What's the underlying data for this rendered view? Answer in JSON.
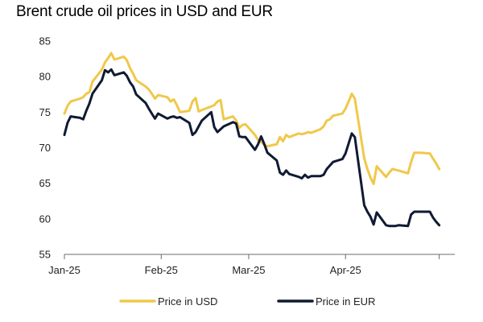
{
  "chart_data": {
    "type": "line",
    "title": "Brent crude oil prices in USD and EUR",
    "xlabel": "",
    "ylabel": "",
    "x_ticks": [
      "Jan-25",
      "Feb-25",
      "Mar-25",
      "Apr-25"
    ],
    "y_ticks": [
      "85",
      "80",
      "75",
      "70",
      "65",
      "60",
      "55"
    ],
    "ylim": [
      55,
      85
    ],
    "grid": false,
    "legend_position": "bottom",
    "series": [
      {
        "name": "Price in USD",
        "color": "#F0C84A",
        "points": [
          [
            "2025-01-01",
            74.8
          ],
          [
            "2025-01-02",
            75.9
          ],
          [
            "2025-01-03",
            76.5
          ],
          [
            "2025-01-06",
            76.9
          ],
          [
            "2025-01-07",
            77.1
          ],
          [
            "2025-01-08",
            77.6
          ],
          [
            "2025-01-09",
            77.8
          ],
          [
            "2025-01-10",
            79.3
          ],
          [
            "2025-01-13",
            81.0
          ],
          [
            "2025-01-14",
            82.0
          ],
          [
            "2025-01-15",
            82.6
          ],
          [
            "2025-01-16",
            83.3
          ],
          [
            "2025-01-17",
            82.4
          ],
          [
            "2025-01-20",
            82.8
          ],
          [
            "2025-01-21",
            82.3
          ],
          [
            "2025-01-22",
            81.2
          ],
          [
            "2025-01-23",
            80.4
          ],
          [
            "2025-01-24",
            79.5
          ],
          [
            "2025-01-27",
            78.6
          ],
          [
            "2025-01-28",
            78.2
          ],
          [
            "2025-01-29",
            77.6
          ],
          [
            "2025-01-30",
            76.9
          ],
          [
            "2025-01-31",
            77.4
          ],
          [
            "2025-02-03",
            77.1
          ],
          [
            "2025-02-04",
            76.5
          ],
          [
            "2025-02-05",
            76.8
          ],
          [
            "2025-02-06",
            76.0
          ],
          [
            "2025-02-07",
            75.0
          ],
          [
            "2025-02-10",
            75.2
          ],
          [
            "2025-02-11",
            76.5
          ],
          [
            "2025-02-12",
            77.0
          ],
          [
            "2025-02-13",
            75.1
          ],
          [
            "2025-02-14",
            75.3
          ],
          [
            "2025-02-17",
            75.8
          ],
          [
            "2025-02-18",
            76.0
          ],
          [
            "2025-02-19",
            76.5
          ],
          [
            "2025-02-20",
            76.7
          ],
          [
            "2025-02-21",
            74.0
          ],
          [
            "2025-02-24",
            74.4
          ],
          [
            "2025-02-25",
            73.8
          ],
          [
            "2025-02-26",
            72.8
          ],
          [
            "2025-02-27",
            73.2
          ],
          [
            "2025-02-28",
            73.3
          ],
          [
            "2025-03-03",
            71.8
          ],
          [
            "2025-03-04",
            71.1
          ],
          [
            "2025-03-05",
            70.8
          ],
          [
            "2025-03-06",
            70.4
          ],
          [
            "2025-03-07",
            70.2
          ],
          [
            "2025-03-10",
            70.5
          ],
          [
            "2025-03-11",
            71.5
          ],
          [
            "2025-03-12",
            70.9
          ],
          [
            "2025-03-13",
            71.8
          ],
          [
            "2025-03-14",
            71.5
          ],
          [
            "2025-03-17",
            72.0
          ],
          [
            "2025-03-18",
            71.9
          ],
          [
            "2025-03-19",
            72.0
          ],
          [
            "2025-03-20",
            72.2
          ],
          [
            "2025-03-21",
            72.1
          ],
          [
            "2025-03-24",
            72.6
          ],
          [
            "2025-03-25",
            73.0
          ],
          [
            "2025-03-26",
            73.8
          ],
          [
            "2025-03-27",
            74.0
          ],
          [
            "2025-03-28",
            74.5
          ],
          [
            "2025-03-31",
            74.8
          ],
          [
            "2025-04-01",
            75.5
          ],
          [
            "2025-04-02",
            76.5
          ],
          [
            "2025-04-03",
            77.6
          ],
          [
            "2025-04-04",
            76.9
          ],
          [
            "2025-04-07",
            68.5
          ],
          [
            "2025-04-08",
            67.0
          ],
          [
            "2025-04-09",
            65.8
          ],
          [
            "2025-04-10",
            64.9
          ],
          [
            "2025-04-11",
            67.4
          ],
          [
            "2025-04-14",
            65.9
          ],
          [
            "2025-04-15",
            66.5
          ],
          [
            "2025-04-16",
            67.0
          ],
          [
            "2025-04-17",
            66.9
          ],
          [
            "2025-04-18",
            66.8
          ],
          [
            "2025-04-21",
            66.4
          ],
          [
            "2025-04-22",
            68.0
          ],
          [
            "2025-04-23",
            69.3
          ],
          [
            "2025-04-24",
            69.3
          ],
          [
            "2025-04-25",
            69.3
          ],
          [
            "2025-04-28",
            69.2
          ],
          [
            "2025-04-29",
            68.5
          ],
          [
            "2025-04-30",
            67.8
          ],
          [
            "2025-05-01",
            67.0
          ]
        ]
      },
      {
        "name": "Price in EUR",
        "color": "#101A33",
        "points": [
          [
            "2025-01-01",
            71.8
          ],
          [
            "2025-01-02",
            73.5
          ],
          [
            "2025-01-03",
            74.4
          ],
          [
            "2025-01-06",
            74.2
          ],
          [
            "2025-01-07",
            74.0
          ],
          [
            "2025-01-08",
            75.2
          ],
          [
            "2025-01-09",
            76.2
          ],
          [
            "2025-01-10",
            77.6
          ],
          [
            "2025-01-13",
            79.5
          ],
          [
            "2025-01-14",
            80.9
          ],
          [
            "2025-01-15",
            80.6
          ],
          [
            "2025-01-16",
            81.0
          ],
          [
            "2025-01-17",
            80.2
          ],
          [
            "2025-01-20",
            80.6
          ],
          [
            "2025-01-21",
            80.1
          ],
          [
            "2025-01-22",
            79.2
          ],
          [
            "2025-01-23",
            78.6
          ],
          [
            "2025-01-24",
            77.5
          ],
          [
            "2025-01-27",
            76.3
          ],
          [
            "2025-01-28",
            75.5
          ],
          [
            "2025-01-29",
            74.8
          ],
          [
            "2025-01-30",
            74.1
          ],
          [
            "2025-01-31",
            74.8
          ],
          [
            "2025-02-03",
            74.1
          ],
          [
            "2025-02-04",
            74.3
          ],
          [
            "2025-02-05",
            74.4
          ],
          [
            "2025-02-06",
            74.2
          ],
          [
            "2025-02-07",
            74.3
          ],
          [
            "2025-02-10",
            73.5
          ],
          [
            "2025-02-11",
            71.8
          ],
          [
            "2025-02-12",
            72.2
          ],
          [
            "2025-02-13",
            73.0
          ],
          [
            "2025-02-14",
            73.8
          ],
          [
            "2025-02-17",
            75.0
          ],
          [
            "2025-02-18",
            72.9
          ],
          [
            "2025-02-19",
            72.2
          ],
          [
            "2025-02-20",
            72.6
          ],
          [
            "2025-02-21",
            73.0
          ],
          [
            "2025-02-24",
            73.6
          ],
          [
            "2025-02-25",
            73.4
          ],
          [
            "2025-02-26",
            71.6
          ],
          [
            "2025-02-27",
            71.5
          ],
          [
            "2025-02-28",
            71.5
          ],
          [
            "2025-03-03",
            69.7
          ],
          [
            "2025-03-04",
            70.5
          ],
          [
            "2025-03-05",
            71.6
          ],
          [
            "2025-03-06",
            70.5
          ],
          [
            "2025-03-07",
            69.3
          ],
          [
            "2025-03-10",
            68.2
          ],
          [
            "2025-03-11",
            66.5
          ],
          [
            "2025-03-12",
            66.2
          ],
          [
            "2025-03-13",
            66.8
          ],
          [
            "2025-03-14",
            66.3
          ],
          [
            "2025-03-17",
            65.9
          ],
          [
            "2025-03-18",
            65.7
          ],
          [
            "2025-03-19",
            66.2
          ],
          [
            "2025-03-20",
            65.8
          ],
          [
            "2025-03-21",
            66.0
          ],
          [
            "2025-03-24",
            66.0
          ],
          [
            "2025-03-25",
            66.2
          ],
          [
            "2025-03-26",
            67.0
          ],
          [
            "2025-03-27",
            67.5
          ],
          [
            "2025-03-28",
            68.0
          ],
          [
            "2025-03-31",
            68.4
          ],
          [
            "2025-04-01",
            69.2
          ],
          [
            "2025-04-02",
            70.6
          ],
          [
            "2025-04-03",
            72.0
          ],
          [
            "2025-04-04",
            71.5
          ],
          [
            "2025-04-07",
            61.9
          ],
          [
            "2025-04-08",
            61.0
          ],
          [
            "2025-04-09",
            60.3
          ],
          [
            "2025-04-10",
            59.2
          ],
          [
            "2025-04-11",
            60.9
          ],
          [
            "2025-04-14",
            59.1
          ],
          [
            "2025-04-15",
            59.0
          ],
          [
            "2025-04-16",
            59.0
          ],
          [
            "2025-04-17",
            59.0
          ],
          [
            "2025-04-18",
            59.1
          ],
          [
            "2025-04-21",
            59.0
          ],
          [
            "2025-04-22",
            60.6
          ],
          [
            "2025-04-23",
            61.0
          ],
          [
            "2025-04-24",
            61.0
          ],
          [
            "2025-04-25",
            61.0
          ],
          [
            "2025-04-28",
            61.0
          ],
          [
            "2025-04-29",
            60.2
          ],
          [
            "2025-04-30",
            59.6
          ],
          [
            "2025-05-01",
            59.1
          ]
        ]
      }
    ]
  }
}
